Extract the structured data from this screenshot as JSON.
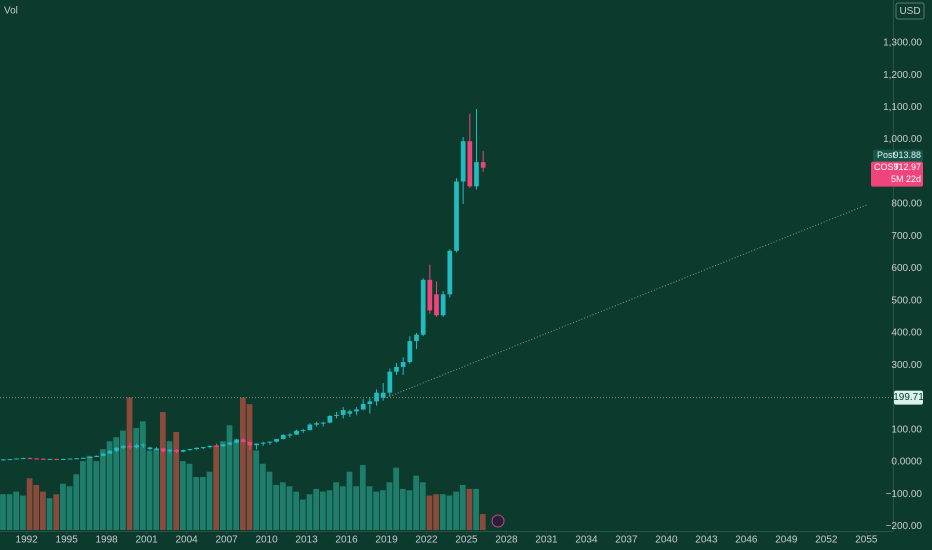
{
  "chart_data": {
    "type": "candlestick",
    "currency": "USD",
    "x": [
      1990.0,
      1990.5,
      1991.0,
      1991.5,
      1992.0,
      1992.5,
      1993.0,
      1993.5,
      1994.0,
      1994.5,
      1995.0,
      1995.5,
      1996.0,
      1996.5,
      1997.0,
      1997.5,
      1998.0,
      1998.5,
      1999.0,
      1999.5,
      2000.0,
      2000.5,
      2001.0,
      2001.5,
      2002.0,
      2002.5,
      2003.0,
      2003.5,
      2004.0,
      2004.5,
      2005.0,
      2005.5,
      2006.0,
      2006.5,
      2007.0,
      2007.5,
      2008.0,
      2008.5,
      2009.0,
      2009.5,
      2010.0,
      2010.5,
      2011.0,
      2011.5,
      2012.0,
      2012.5,
      2013.0,
      2013.5,
      2014.0,
      2014.5,
      2015.0,
      2015.5,
      2016.0,
      2016.5,
      2017.0,
      2017.5,
      2018.0,
      2018.5,
      2019.0,
      2019.5,
      2020.0,
      2020.5,
      2021.0,
      2021.5,
      2022.0,
      2022.5,
      2023.0,
      2023.5,
      2024.0,
      2024.5,
      2025.0,
      2025.5,
      2026.0
    ],
    "open": [
      7,
      8,
      9,
      11,
      12,
      11,
      10,
      9,
      9.5,
      8,
      9.5,
      10.5,
      11.5,
      13,
      15.5,
      19,
      26,
      35,
      44,
      50,
      45,
      52,
      40,
      38,
      42,
      33,
      38,
      32,
      37,
      40,
      44,
      46,
      50,
      49,
      54,
      60,
      70,
      62,
      52,
      57,
      60,
      63,
      71,
      84,
      85,
      97,
      99,
      116,
      120,
      122,
      143,
      146,
      150,
      157,
      163,
      180,
      188,
      200,
      215,
      280,
      295,
      310,
      375,
      395,
      565,
      520,
      455,
      520,
      655,
      870,
      995,
      855,
      930
    ],
    "high": [
      9,
      9,
      11,
      13,
      14,
      12,
      11,
      10,
      10,
      10,
      11,
      12,
      14,
      16,
      20,
      27,
      36,
      46,
      52,
      60,
      57,
      58,
      47,
      46,
      44,
      40,
      39,
      38,
      41,
      45,
      47,
      51,
      57,
      56,
      62,
      72,
      75,
      66,
      58,
      62,
      64,
      72,
      86,
      89,
      100,
      103,
      120,
      125,
      125,
      145,
      155,
      170,
      162,
      170,
      195,
      200,
      225,
      245,
      290,
      307,
      325,
      390,
      400,
      570,
      612,
      560,
      530,
      660,
      880,
      1008,
      1080,
      1095,
      965
    ],
    "low": [
      6,
      7,
      8,
      10,
      10,
      9,
      8,
      8,
      7,
      8,
      9,
      10,
      11,
      12,
      15,
      18,
      25,
      30,
      40,
      38,
      42,
      44,
      37,
      35,
      30,
      27,
      27,
      30,
      35,
      38,
      40,
      42,
      47,
      47,
      52,
      58,
      60,
      38,
      39,
      50,
      53,
      60,
      70,
      75,
      84,
      90,
      98,
      110,
      110,
      120,
      135,
      135,
      140,
      145,
      160,
      150,
      175,
      190,
      205,
      270,
      270,
      305,
      350,
      390,
      460,
      450,
      450,
      510,
      650,
      800,
      850,
      845,
      900
    ],
    "close": [
      8,
      9,
      11,
      12,
      11,
      10,
      9,
      9.5,
      8,
      9.5,
      10.5,
      11.5,
      13,
      15.5,
      19,
      26,
      35,
      44,
      50,
      45,
      52,
      54,
      45,
      42,
      33,
      38,
      32,
      37,
      40,
      44,
      46,
      50,
      49,
      54,
      60,
      70,
      62,
      52,
      57,
      60,
      63,
      71,
      84,
      85,
      97,
      99,
      116,
      120,
      122,
      143,
      146,
      161,
      157,
      163,
      180,
      188,
      215,
      215,
      280,
      295,
      310,
      375,
      395,
      565,
      470,
      455,
      520,
      655,
      870,
      995,
      855,
      930,
      912.97
    ],
    "up_color": "#22bcc0",
    "down_color": "#f0457a",
    "volume": {
      "name": "Vol",
      "ylim": [
        0,
        100
      ],
      "up_color": "#1f7d6c",
      "down_color": "#8b4b3c",
      "values": [
        27,
        27,
        29,
        26,
        39,
        34,
        29,
        24,
        27,
        35,
        33,
        42,
        52,
        56,
        52,
        61,
        67,
        70,
        75,
        100,
        77,
        82,
        60,
        61,
        89,
        67,
        74,
        52,
        50,
        40,
        40,
        44,
        64,
        67,
        79,
        67,
        100,
        95,
        60,
        50,
        44,
        34,
        36,
        33,
        29,
        23,
        27,
        31,
        29,
        30,
        36,
        33,
        44,
        33,
        49,
        33,
        29,
        30,
        36,
        47,
        31,
        30,
        41,
        36,
        26,
        27,
        27,
        26,
        29,
        34,
        31,
        31,
        12
      ]
    },
    "xlim": [
      1990,
      2057
    ],
    "xticks": [
      1992,
      1995,
      1998,
      2001,
      2004,
      2007,
      2010,
      2013,
      2016,
      2019,
      2022,
      2025,
      2028,
      2031,
      2034,
      2037,
      2040,
      2043,
      2046,
      2049,
      2052,
      2055
    ],
    "ylim": [
      -211,
      1433
    ],
    "yticks": [
      {
        "value": 1300,
        "label": "1,300.00"
      },
      {
        "value": 1200,
        "label": "1,200.00"
      },
      {
        "value": 1100,
        "label": "1,100.00"
      },
      {
        "value": 1000,
        "label": "1,000.00"
      },
      {
        "value": 800,
        "label": "800.00"
      },
      {
        "value": 700,
        "label": "700.00"
      },
      {
        "value": 600,
        "label": "600.00"
      },
      {
        "value": 500,
        "label": "500.00"
      },
      {
        "value": 400,
        "label": "400.00"
      },
      {
        "value": 300,
        "label": "300.00"
      },
      {
        "value": 100,
        "label": "100.00"
      },
      {
        "value": 0,
        "label": "0.0000"
      },
      {
        "value": -100,
        "label": "−100.00"
      },
      {
        "value": -200,
        "label": "−200.00"
      }
    ],
    "price_line": {
      "value": 199.71
    },
    "trend_line": {
      "x": [
        2019.0,
        2055.0
      ],
      "y": [
        199.71,
        797
      ]
    },
    "post_market": {
      "label": "Post",
      "value": 913.88
    },
    "last_price": {
      "symbol": "COST",
      "value": 912.97,
      "countdown": "5M 22d"
    }
  }
}
